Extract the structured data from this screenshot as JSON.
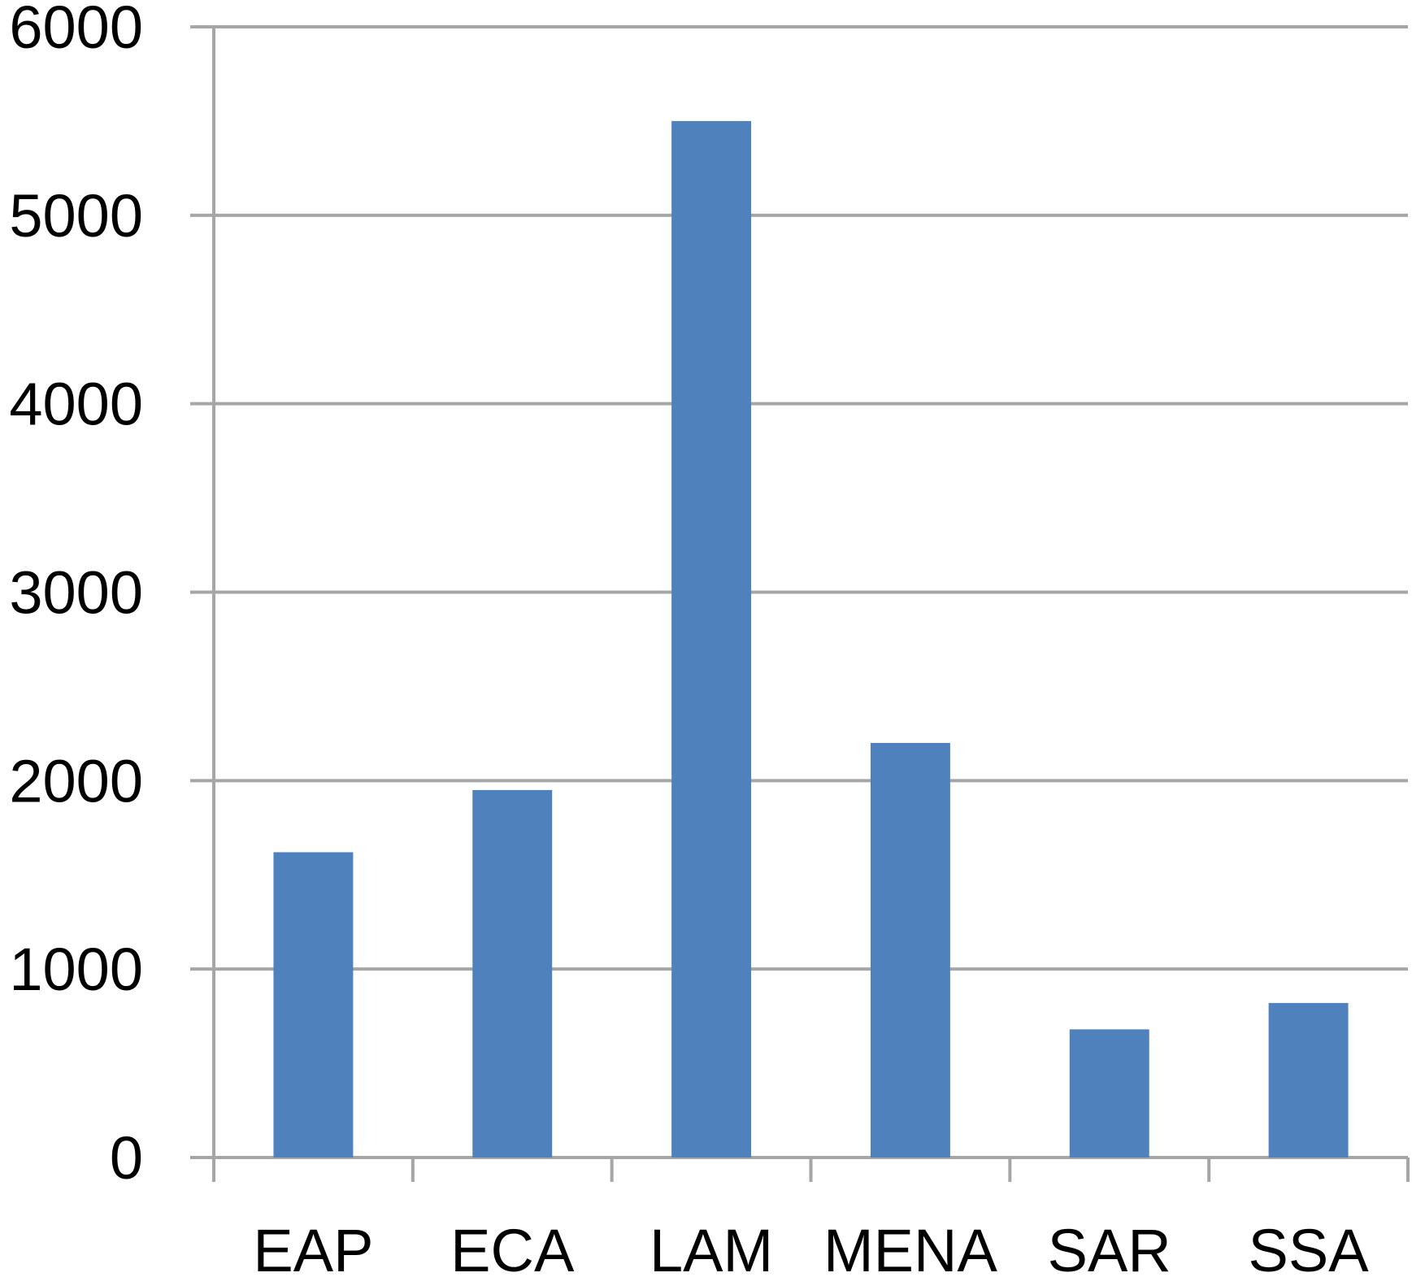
{
  "chart_data": {
    "type": "bar",
    "categories": [
      "EAP",
      "ECA",
      "LAM",
      "MENA",
      "SAR",
      "SSA"
    ],
    "series": [
      {
        "values": [
          1620,
          1950,
          5500,
          2200,
          680,
          820
        ]
      }
    ],
    "title": "",
    "xlabel": "",
    "ylabel": "",
    "ylim": [
      0,
      6000
    ],
    "yticks": [
      "0",
      "1000",
      "2000",
      "3000",
      "4000",
      "5000",
      "6000"
    ],
    "grid": true,
    "legend": "none",
    "colors": {
      "bar": "#4f81bd",
      "grid": "#a6a6a6",
      "text": "#000000"
    }
  }
}
